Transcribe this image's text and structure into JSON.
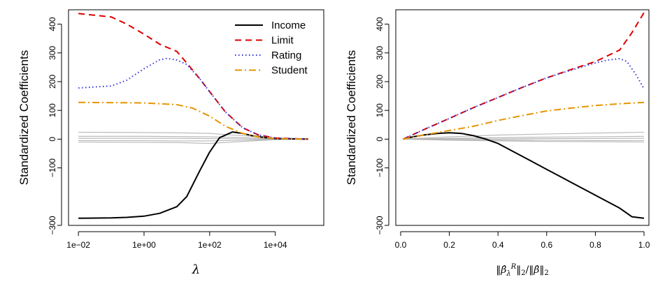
{
  "chart_data": [
    {
      "type": "line",
      "panel": "left",
      "xscale": "log10",
      "xlim": [
        0.005,
        300000
      ],
      "ylim": [
        -300,
        450
      ],
      "xticks": [
        0.01,
        1,
        100,
        10000
      ],
      "xtick_labels": [
        "1e−02",
        "1e+00",
        "1e+02",
        "1e+04"
      ],
      "yticks": [
        -300,
        -100,
        0,
        100,
        200,
        300,
        400
      ],
      "ytick_labels": [
        "−300",
        "−100",
        "0",
        "100",
        "200",
        "300",
        "400"
      ],
      "ylabel": "Standardized Coefficients",
      "xlabel": "λ",
      "legend_position": "top-right",
      "legend": [
        "Income",
        "Limit",
        "Rating",
        "Student"
      ],
      "series": [
        {
          "name": "Income",
          "color": "#000000",
          "style": "solid",
          "x": [
            0.01,
            0.1,
            0.3,
            1,
            3,
            10,
            20,
            50,
            100,
            200,
            500,
            1000,
            2000,
            5000,
            10000,
            100000
          ],
          "y": [
            -275,
            -274,
            -272,
            -268,
            -258,
            -235,
            -200,
            -110,
            -45,
            5,
            25,
            20,
            12,
            5,
            2,
            0
          ]
        },
        {
          "name": "Limit",
          "color": "#dd0000",
          "style": "dashed",
          "x": [
            0.01,
            0.1,
            0.3,
            1,
            3,
            10,
            20,
            50,
            100,
            300,
            1000,
            3000,
            10000,
            100000
          ],
          "y": [
            437,
            425,
            400,
            365,
            330,
            305,
            265,
            210,
            165,
            95,
            40,
            15,
            4,
            0
          ]
        },
        {
          "name": "Rating",
          "color": "#3333dd",
          "style": "dotted",
          "x": [
            0.01,
            0.1,
            0.3,
            1,
            3,
            5,
            10,
            20,
            50,
            100,
            300,
            1000,
            3000,
            10000,
            100000
          ],
          "y": [
            178,
            185,
            205,
            245,
            276,
            281,
            275,
            260,
            210,
            165,
            95,
            40,
            15,
            4,
            0
          ]
        },
        {
          "name": "Student",
          "color": "#e69500",
          "style": "dotdash",
          "x": [
            0.01,
            0.1,
            1,
            10,
            30,
            100,
            300,
            1000,
            3000,
            10000,
            100000
          ],
          "y": [
            128,
            127,
            126,
            120,
            108,
            80,
            45,
            20,
            8,
            2,
            0
          ]
        },
        {
          "name": "",
          "color": "#b5b5b5",
          "style": "solid",
          "x": [
            0.01,
            1,
            10,
            100,
            1000,
            10000,
            100000
          ],
          "y": [
            24,
            23,
            22,
            20,
            12,
            4,
            0
          ]
        },
        {
          "name": "",
          "color": "#b5b5b5",
          "style": "solid",
          "x": [
            0.01,
            1,
            10,
            100,
            1000,
            10000,
            100000
          ],
          "y": [
            10,
            10,
            9,
            8,
            5,
            2,
            0
          ]
        },
        {
          "name": "",
          "color": "#b5b5b5",
          "style": "solid",
          "x": [
            0.01,
            1,
            10,
            100,
            1000,
            10000,
            100000
          ],
          "y": [
            3,
            3,
            3,
            2,
            1,
            0,
            0
          ]
        },
        {
          "name": "",
          "color": "#b5b5b5",
          "style": "solid",
          "x": [
            0.01,
            1,
            10,
            100,
            1000,
            10000,
            100000
          ],
          "y": [
            -5,
            -5,
            -6,
            -6,
            -4,
            -1,
            0
          ]
        },
        {
          "name": "",
          "color": "#b5b5b5",
          "style": "solid",
          "x": [
            0.01,
            1,
            10,
            100,
            1000,
            10000,
            100000
          ],
          "y": [
            -10,
            -11,
            -12,
            -15,
            -8,
            -2,
            0
          ]
        }
      ]
    },
    {
      "type": "line",
      "panel": "right",
      "xscale": "linear",
      "xlim": [
        -0.02,
        1.02
      ],
      "ylim": [
        -300,
        450
      ],
      "xticks": [
        0.0,
        0.2,
        0.4,
        0.6,
        0.8,
        1.0
      ],
      "xtick_labels": [
        "0.0",
        "0.2",
        "0.4",
        "0.6",
        "0.8",
        "1.0"
      ],
      "yticks": [
        -300,
        -100,
        0,
        100,
        200,
        300,
        400
      ],
      "ytick_labels": [
        "−300",
        "−100",
        "0",
        "100",
        "200",
        "300",
        "400"
      ],
      "ylabel": "Standardized Coefficients",
      "xlabel": "‖β̂λR‖2/‖β̂‖2",
      "series": [
        {
          "name": "Income",
          "color": "#000000",
          "style": "solid",
          "x": [
            0.01,
            0.05,
            0.1,
            0.15,
            0.2,
            0.25,
            0.3,
            0.35,
            0.4,
            0.5,
            0.6,
            0.7,
            0.8,
            0.9,
            0.95,
            1.0
          ],
          "y": [
            0,
            8,
            15,
            20,
            22,
            20,
            12,
            0,
            -15,
            -60,
            -105,
            -150,
            -195,
            -240,
            -270,
            -275
          ]
        },
        {
          "name": "Limit",
          "color": "#dd0000",
          "style": "dashed",
          "x": [
            0.01,
            0.1,
            0.2,
            0.3,
            0.4,
            0.5,
            0.6,
            0.7,
            0.8,
            0.9,
            0.95,
            1.0
          ],
          "y": [
            0,
            35,
            72,
            110,
            145,
            180,
            213,
            242,
            270,
            310,
            370,
            440
          ]
        },
        {
          "name": "Rating",
          "color": "#3333dd",
          "style": "dotted",
          "x": [
            0.01,
            0.1,
            0.2,
            0.3,
            0.4,
            0.5,
            0.6,
            0.7,
            0.8,
            0.85,
            0.9,
            0.93,
            0.97,
            1.0
          ],
          "y": [
            0,
            35,
            72,
            110,
            145,
            180,
            213,
            240,
            265,
            275,
            280,
            270,
            220,
            175
          ]
        },
        {
          "name": "Student",
          "color": "#e69500",
          "style": "dotdash",
          "x": [
            0.01,
            0.1,
            0.2,
            0.3,
            0.4,
            0.5,
            0.6,
            0.7,
            0.8,
            0.9,
            1.0
          ],
          "y": [
            0,
            15,
            30,
            45,
            65,
            82,
            98,
            108,
            117,
            123,
            128
          ]
        },
        {
          "name": "",
          "color": "#b5b5b5",
          "style": "solid",
          "x": [
            0.01,
            0.2,
            0.4,
            0.6,
            0.8,
            1.0
          ],
          "y": [
            0,
            8,
            14,
            18,
            21,
            24
          ]
        },
        {
          "name": "",
          "color": "#b5b5b5",
          "style": "solid",
          "x": [
            0.01,
            0.2,
            0.4,
            0.6,
            0.8,
            1.0
          ],
          "y": [
            0,
            3,
            5,
            7,
            8,
            10
          ]
        },
        {
          "name": "",
          "color": "#b5b5b5",
          "style": "solid",
          "x": [
            0.01,
            0.2,
            0.4,
            0.6,
            0.8,
            1.0
          ],
          "y": [
            0,
            1,
            1,
            2,
            2,
            3
          ]
        },
        {
          "name": "",
          "color": "#b5b5b5",
          "style": "solid",
          "x": [
            0.01,
            0.2,
            0.4,
            0.6,
            0.8,
            1.0
          ],
          "y": [
            0,
            -2,
            -3,
            -4,
            -5,
            -5
          ]
        },
        {
          "name": "",
          "color": "#b5b5b5",
          "style": "solid",
          "x": [
            0.01,
            0.2,
            0.4,
            0.6,
            0.8,
            1.0
          ],
          "y": [
            0,
            -4,
            -6,
            -8,
            -9,
            -10
          ]
        }
      ]
    }
  ]
}
